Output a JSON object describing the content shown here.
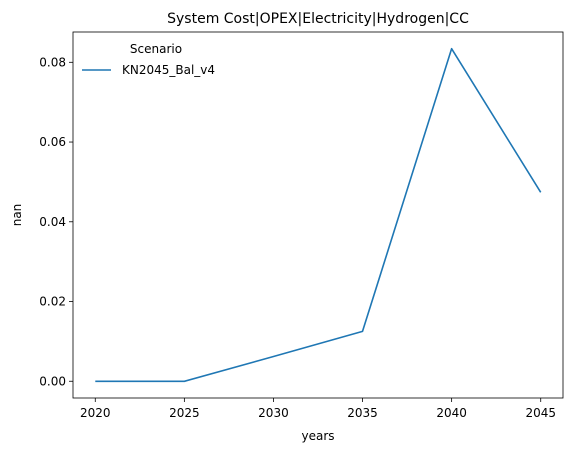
{
  "chart_data": {
    "type": "line",
    "title": "System Cost|OPEX|Electricity|Hydrogen|CC",
    "xlabel": "years",
    "ylabel": "nan",
    "x": [
      2020,
      2025,
      2030,
      2035,
      2040,
      2045
    ],
    "xticks": [
      "2020",
      "2025",
      "2030",
      "2035",
      "2040",
      "2045"
    ],
    "yticks": [
      "0.00",
      "0.02",
      "0.04",
      "0.06",
      "0.08"
    ],
    "ylim": [
      -0.0042,
      0.0876
    ],
    "xlim": [
      2018.75,
      2046.25
    ],
    "legend": {
      "title": "Scenario",
      "placement": "upper-left"
    },
    "series": [
      {
        "name": "KN2045_Bal_v4",
        "color": "#1f77b4",
        "values": [
          0.0,
          0.0,
          0.0062,
          0.0125,
          0.0834,
          0.0474
        ]
      }
    ]
  }
}
